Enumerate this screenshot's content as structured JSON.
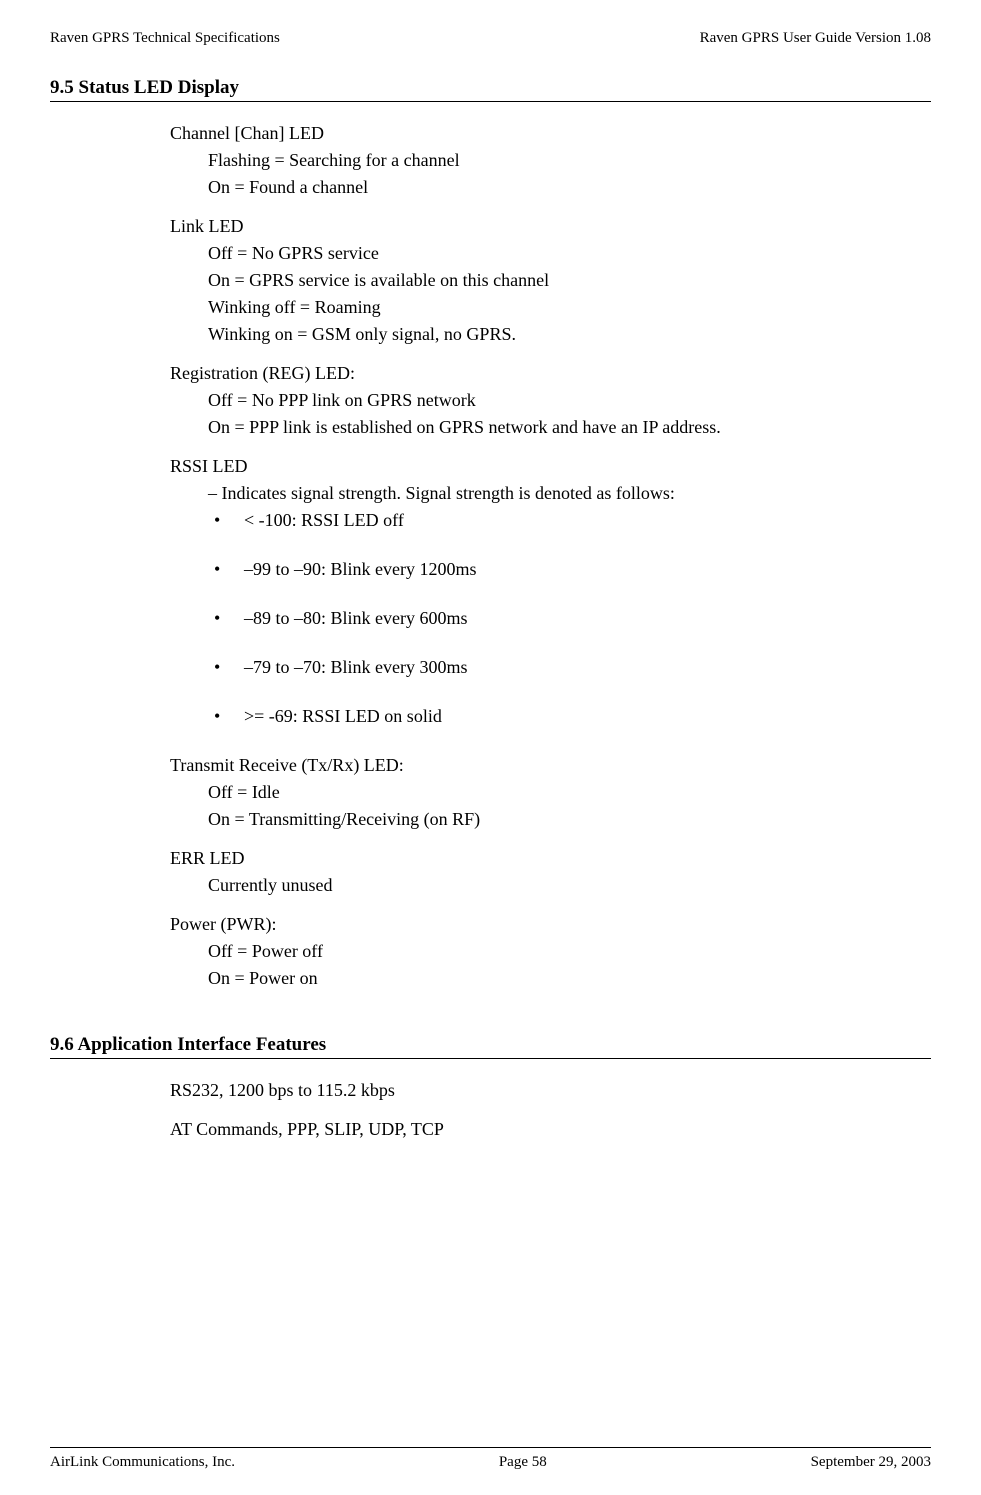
{
  "header": {
    "left": "Raven GPRS Technical Specifications",
    "right": "Raven GPRS User Guide Version 1.08"
  },
  "section95": {
    "heading": "9.5   Status LED Display",
    "chan": {
      "title": "Channel [Chan] LED",
      "l1": "Flashing = Searching for a channel",
      "l2": "On = Found a channel"
    },
    "link": {
      "title": "Link LED",
      "l1": "Off = No GPRS service",
      "l2": "On = GPRS service is available on this channel",
      "l3": "Winking off = Roaming",
      "l4": "Winking on = GSM only signal, no GPRS."
    },
    "reg": {
      "title": "Registration (REG) LED:",
      "l1": "Off = No PPP link on GPRS network",
      "l2": "On = PPP link is established on GPRS network and have an IP address."
    },
    "rssi": {
      "title": "RSSI LED",
      "intro": "– Indicates signal strength. Signal strength is denoted as follows:",
      "b1": "< -100: RSSI LED off",
      "b2": "–99 to –90: Blink every 1200ms",
      "b3": "–89 to –80: Blink every 600ms",
      "b4": "–79 to –70: Blink every 300ms",
      "b5": ">= -69: RSSI LED on solid"
    },
    "txrx": {
      "title": "Transmit Receive (Tx/Rx) LED:",
      "l1": "Off = Idle",
      "l2": "On = Transmitting/Receiving (on RF)"
    },
    "err": {
      "title": "ERR LED",
      "l1": "Currently unused"
    },
    "pwr": {
      "title": "Power (PWR):",
      "l1": "Off = Power off",
      "l2": "On = Power on"
    }
  },
  "section96": {
    "heading": "9.6   Application Interface Features",
    "l1": "RS232, 1200 bps to 115.2 kbps",
    "l2": "AT Commands, PPP, SLIP, UDP, TCP"
  },
  "footer": {
    "left": "AirLink Communications, Inc.",
    "center": "Page 58",
    "right": "September 29, 2003"
  }
}
